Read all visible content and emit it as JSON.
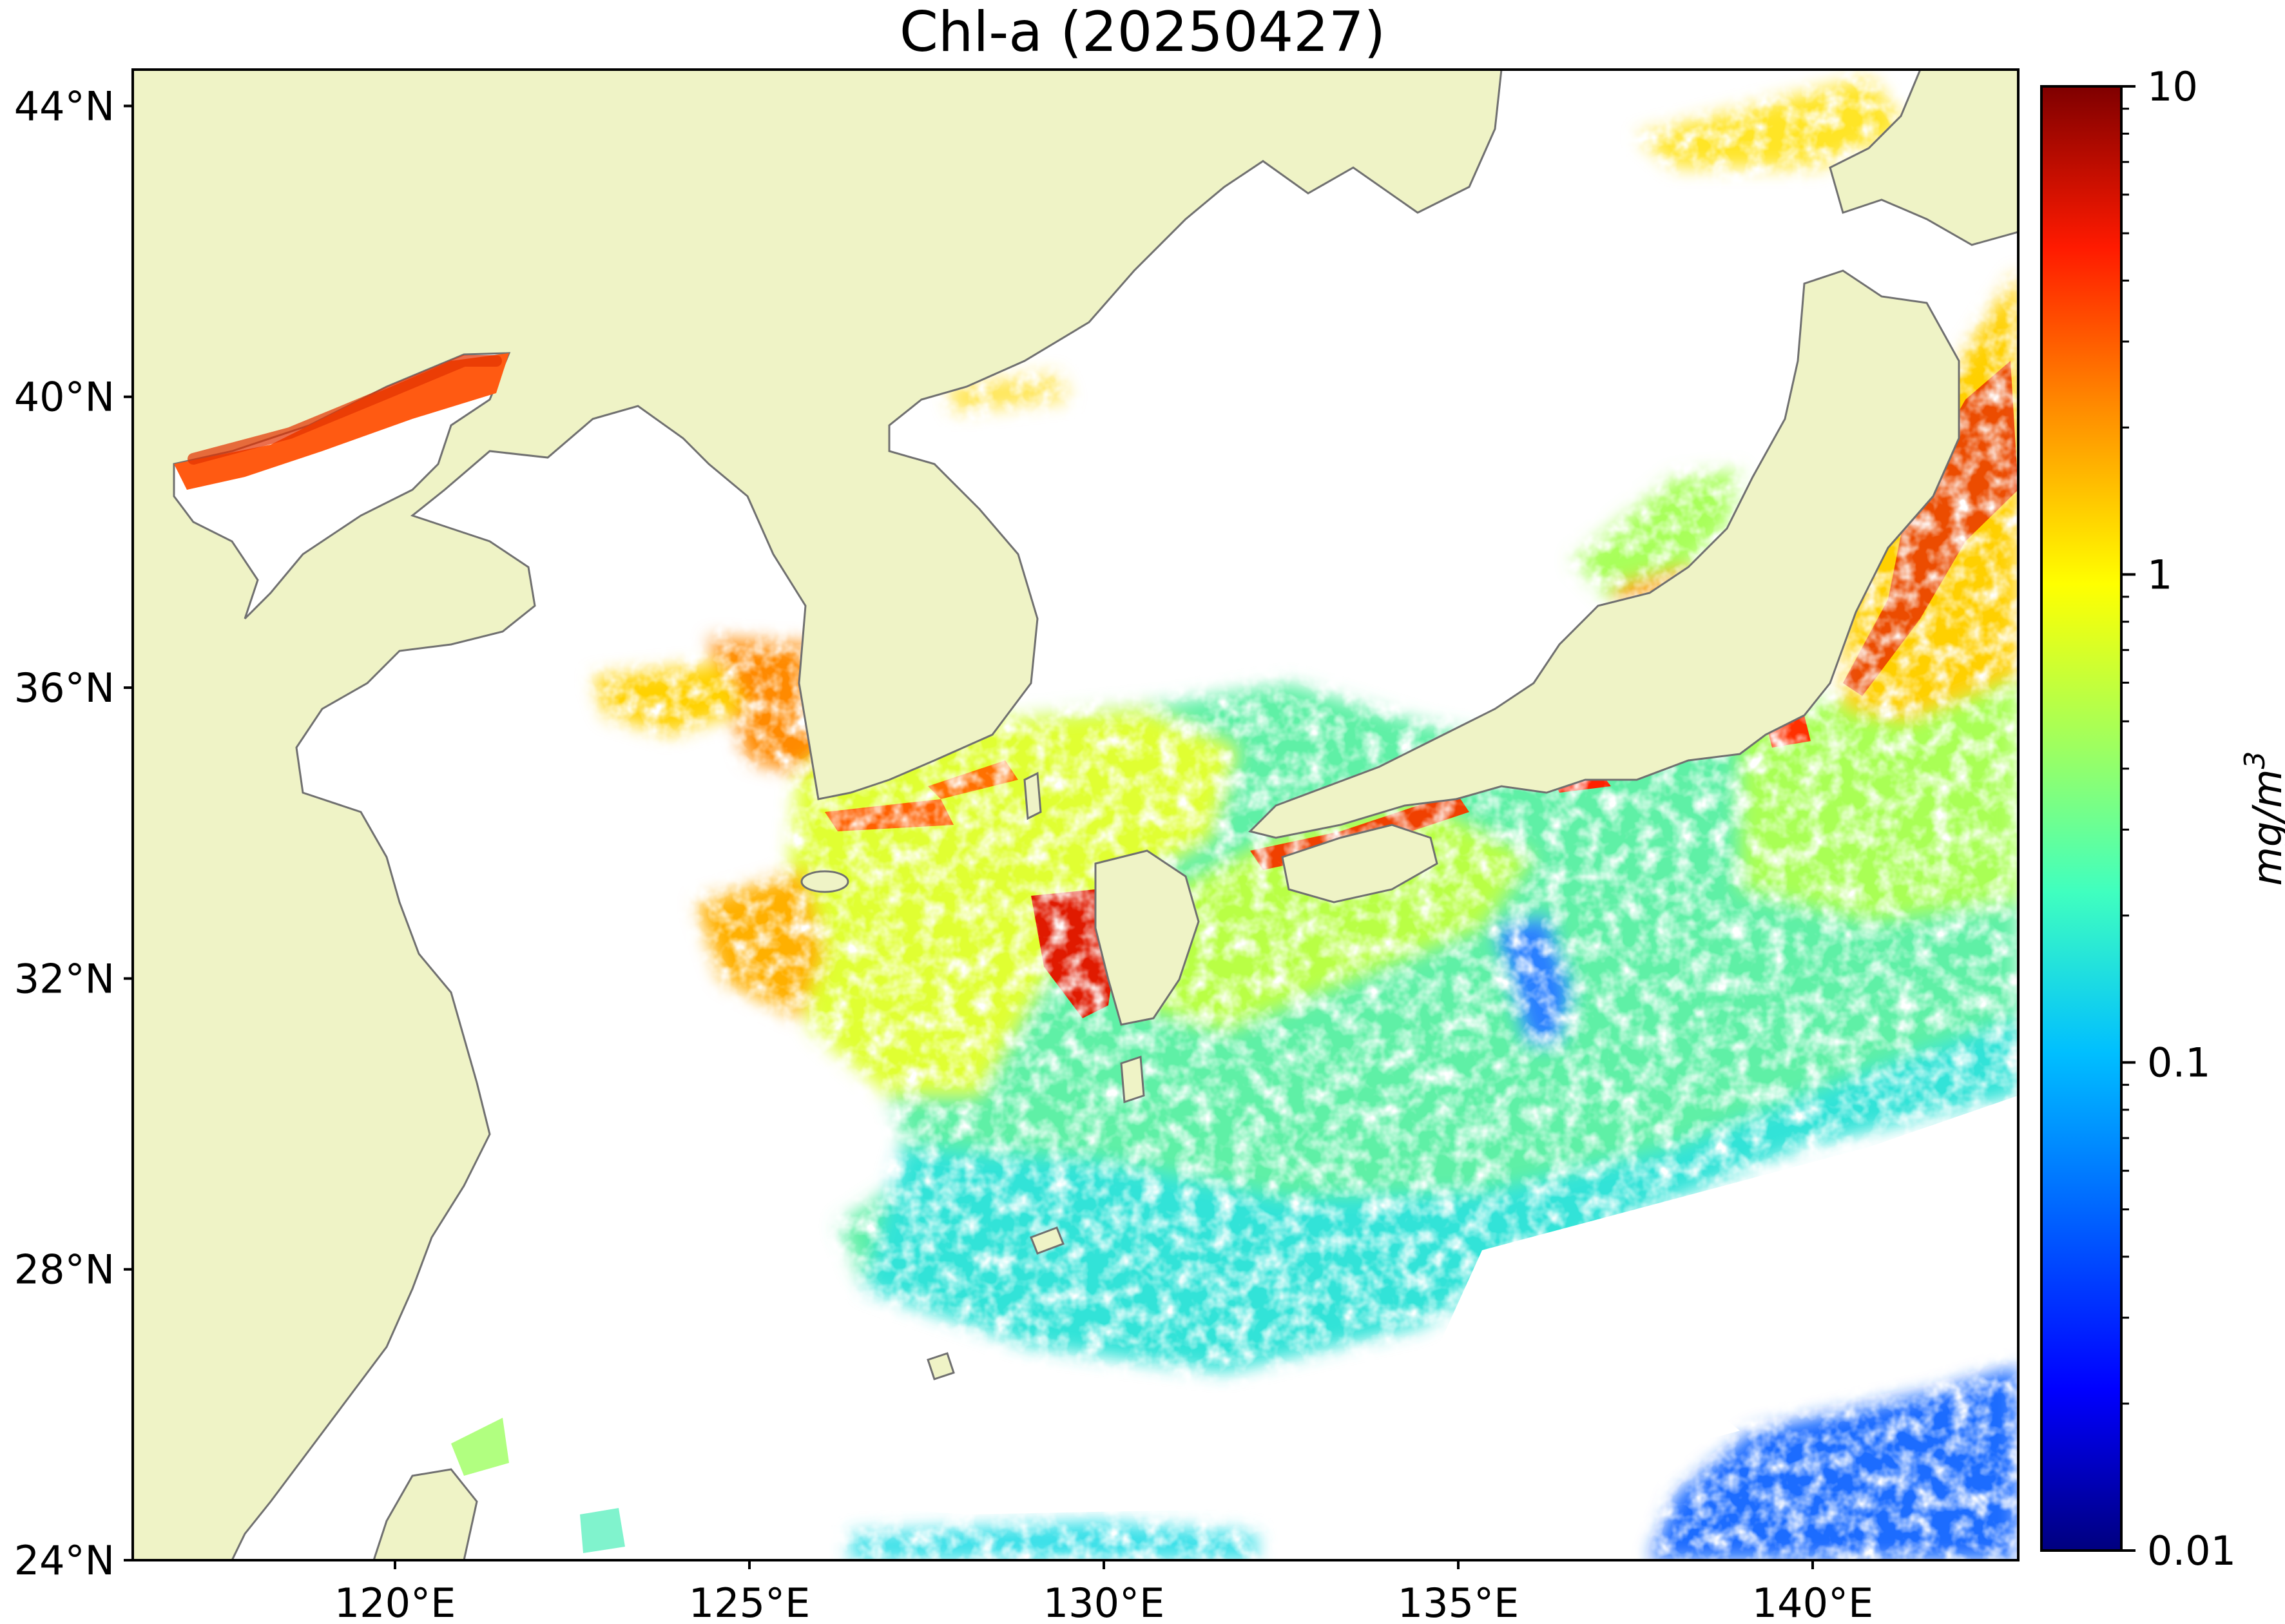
{
  "title": "Chl-a (20250427)",
  "map": {
    "lat_labels": [
      {
        "lat": 44,
        "label": "44°N"
      },
      {
        "lat": 40,
        "label": "40°N"
      },
      {
        "lat": 36,
        "label": "36°N"
      },
      {
        "lat": 32,
        "label": "32°N"
      },
      {
        "lat": 28,
        "label": "28°N"
      },
      {
        "lat": 24,
        "label": "24°N"
      }
    ],
    "lon_labels": [
      {
        "lon": 120,
        "label": "120°E"
      },
      {
        "lon": 125,
        "label": "125°E"
      },
      {
        "lon": 130,
        "label": "130°E"
      },
      {
        "lon": 135,
        "label": "135°E"
      },
      {
        "lon": 140,
        "label": "140°E"
      }
    ],
    "extent": {
      "lon_min": 116.3,
      "lon_max": 142.9,
      "lat_min": 24.0,
      "lat_max": 44.5
    },
    "land_color": "#eff3c6",
    "coast_color": "#707070",
    "missing_color": "#ffffff"
  },
  "colorbar": {
    "label": "mg/m",
    "label_sup": "3",
    "scale": "log",
    "range": [
      0.01,
      10
    ],
    "ticks": [
      {
        "value": 10,
        "label": "10"
      },
      {
        "value": 1,
        "label": "1"
      },
      {
        "value": 0.1,
        "label": "0.1"
      },
      {
        "value": 0.01,
        "label": "0.01"
      }
    ],
    "colormap": "jet",
    "colors": [
      "#00007f",
      "#0000ff",
      "#007fff",
      "#00ffff",
      "#7fff7f",
      "#ffff00",
      "#ff7f00",
      "#ff0000",
      "#7f0000"
    ]
  }
}
